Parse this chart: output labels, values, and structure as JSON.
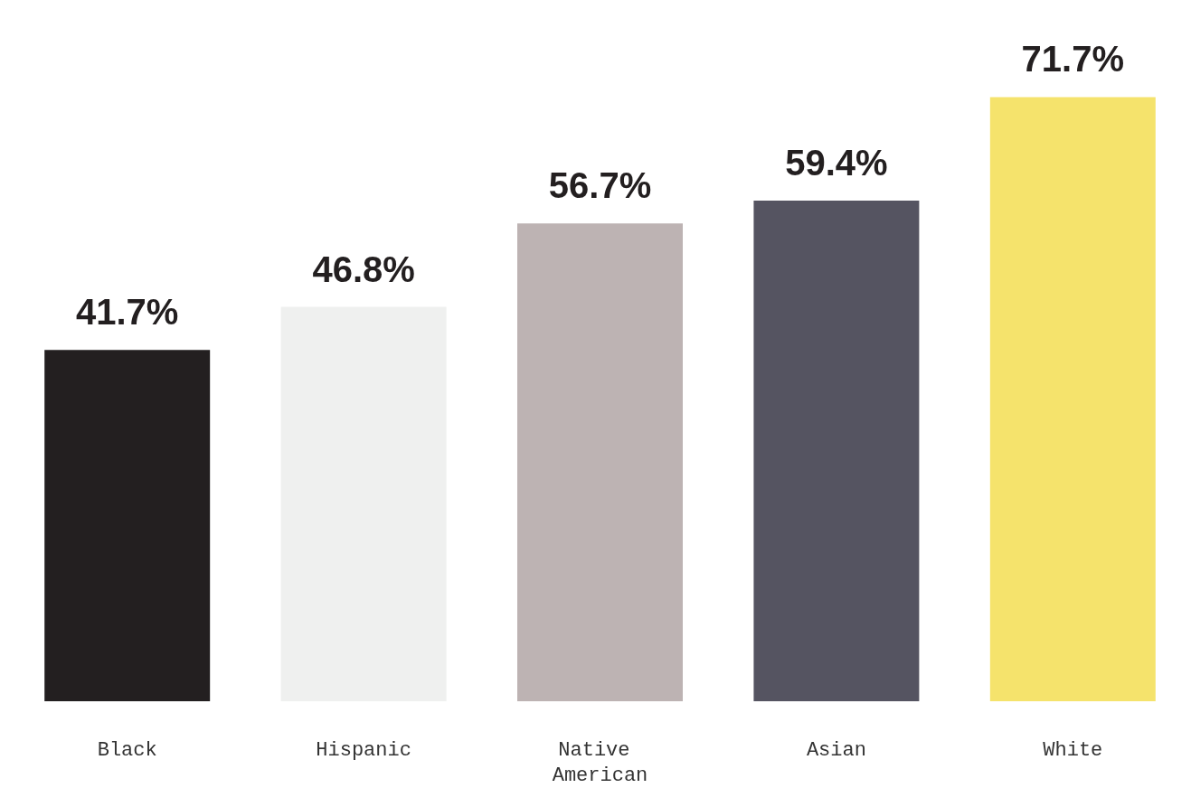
{
  "chart_data": {
    "type": "bar",
    "categories": [
      "Black",
      "Hispanic",
      "Native American",
      "Asian",
      "White"
    ],
    "values": [
      41.7,
      46.8,
      56.7,
      59.4,
      71.7
    ],
    "value_labels": [
      "41.7%",
      "46.8%",
      "56.7%",
      "59.4%",
      "71.7%"
    ],
    "colors": [
      "#231f20",
      "#eff0ef",
      "#bdb3b3",
      "#555461",
      "#f5e36c"
    ]
  }
}
